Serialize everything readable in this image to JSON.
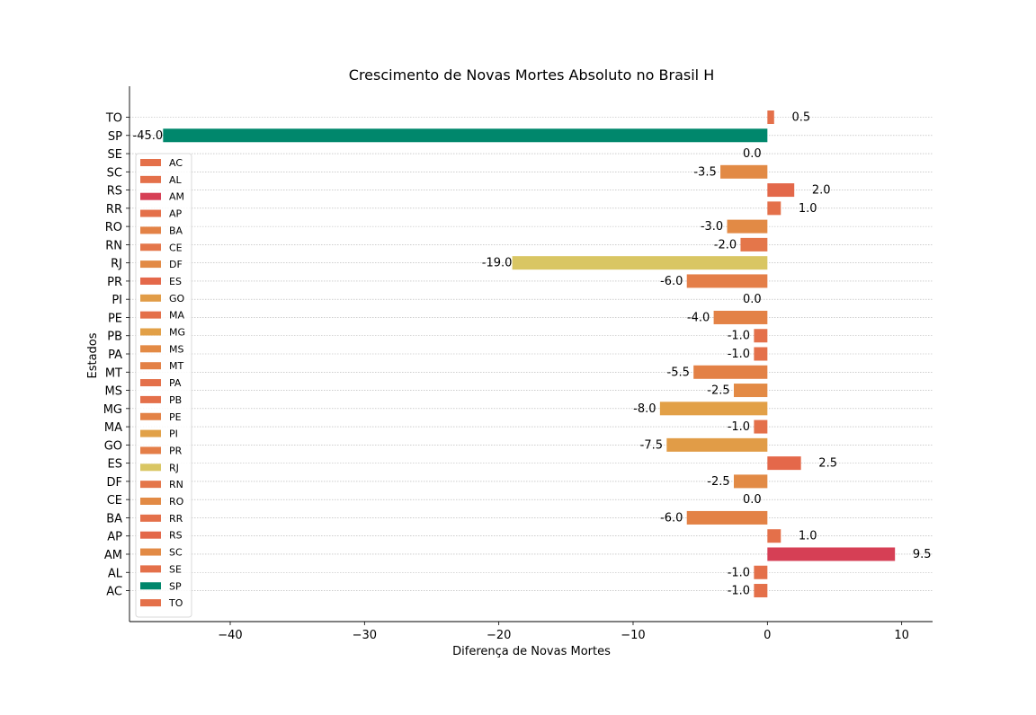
{
  "chart_data": {
    "type": "bar",
    "orientation": "horizontal",
    "title": "Crescimento de Novas Mortes Absoluto no Brasil H",
    "xlabel": "Diferença de Novas Mortes",
    "ylabel": "Estados",
    "xlim": [
      -47.5,
      12.3
    ],
    "xticks": [
      -40,
      -30,
      -20,
      -10,
      0,
      10
    ],
    "xtick_labels": [
      "−40",
      "−30",
      "−20",
      "−10",
      "0",
      "10"
    ],
    "grid": "horizontal dotted",
    "legend_position": "left",
    "categories": [
      "TO",
      "SP",
      "SE",
      "SC",
      "RS",
      "RR",
      "RO",
      "RN",
      "RJ",
      "PR",
      "PI",
      "PE",
      "PB",
      "PA",
      "MT",
      "MS",
      "MG",
      "MA",
      "GO",
      "ES",
      "DF",
      "CE",
      "BA",
      "AP",
      "AM",
      "AL",
      "AC"
    ],
    "values": [
      0.5,
      -45.0,
      0.0,
      -3.5,
      2.0,
      1.0,
      -3.0,
      -2.0,
      -19.0,
      -6.0,
      0.0,
      -4.0,
      -1.0,
      -1.0,
      -5.5,
      -2.5,
      -8.0,
      -1.0,
      -7.5,
      2.5,
      -2.5,
      0.0,
      -6.0,
      1.0,
      9.5,
      -1.0,
      -1.0
    ],
    "value_labels": [
      "0.5",
      "-45.0",
      "0.0",
      "-3.5",
      "2.0",
      "1.0",
      "-3.0",
      "-2.0",
      "-19.0",
      "-6.0",
      "0.0",
      "-4.0",
      "-1.0",
      "-1.0",
      "-5.5",
      "-2.5",
      "-8.0",
      "-1.0",
      "-7.5",
      "2.5",
      "-2.5",
      "0.0",
      "-6.0",
      "1.0",
      "9.5",
      "-1.0",
      "-1.0"
    ],
    "colors": {
      "TO": "#e4704a",
      "SP": "#00876c",
      "SE": "#e4704a",
      "SC": "#e28a45",
      "RS": "#e3684a",
      "RR": "#e4704a",
      "RO": "#e28a45",
      "RN": "#e4764a",
      "RJ": "#d9c663",
      "PR": "#e47e48",
      "PI": "#e1a148",
      "PE": "#e38246",
      "PB": "#e4704a",
      "PA": "#e4704a",
      "MT": "#e38146",
      "MS": "#e38a45",
      "MG": "#e2a047",
      "MA": "#e4704a",
      "GO": "#e19c47",
      "ES": "#e4684a",
      "DF": "#e28a45",
      "CE": "#e4764a",
      "BA": "#e38246",
      "AP": "#e4704a",
      "AM": "#d63f55",
      "AL": "#e4704a",
      "AC": "#e4704a"
    },
    "legend": [
      "AC",
      "AL",
      "AM",
      "AP",
      "BA",
      "CE",
      "DF",
      "ES",
      "GO",
      "MA",
      "MG",
      "MS",
      "MT",
      "PA",
      "PB",
      "PE",
      "PI",
      "PR",
      "RJ",
      "RN",
      "RO",
      "RR",
      "RS",
      "SC",
      "SE",
      "SP",
      "TO"
    ]
  }
}
